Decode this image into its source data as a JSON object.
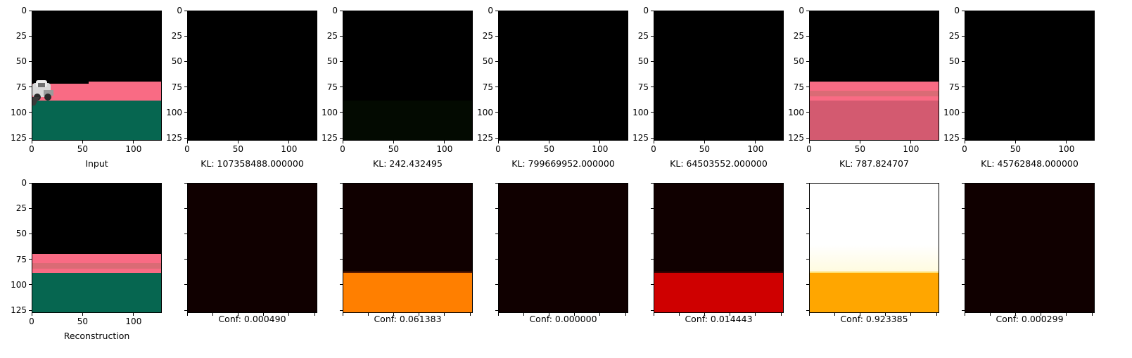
{
  "chart_data": {
    "type": "image-grid",
    "axis_range": [
      0,
      127
    ],
    "x_ticks": [
      "0",
      "50",
      "100"
    ],
    "y_ticks": [
      "0",
      "25",
      "50",
      "75",
      "100",
      "125"
    ],
    "top_row": [
      {
        "caption": "Input",
        "image": "input-scene"
      },
      {
        "caption": "KL: 107358488.000000",
        "image": "black"
      },
      {
        "caption": "KL: 242.432495",
        "image": "black-faint-green"
      },
      {
        "caption": "KL: 799669952.000000",
        "image": "black"
      },
      {
        "caption": "KL: 64503552.000000",
        "image": "black"
      },
      {
        "caption": "KL: 787.824707",
        "image": "pink-reconstruction"
      },
      {
        "caption": "KL: 45762848.000000",
        "image": "black"
      }
    ],
    "bottom_row": [
      {
        "caption": "Reconstruction",
        "image": "reconstruction-scene"
      },
      {
        "caption": "Conf: 0.000490",
        "image": "heat-dark"
      },
      {
        "caption": "Conf: 0.061383",
        "image": "heat-orange"
      },
      {
        "caption": "Conf: 0.000000",
        "image": "heat-dark"
      },
      {
        "caption": "Conf: 0.014443",
        "image": "heat-red"
      },
      {
        "caption": "Conf: 0.923385",
        "image": "heat-white-yellow"
      },
      {
        "caption": "Conf: 0.000299",
        "image": "heat-dark-line"
      }
    ],
    "colors": {
      "black": "#000000",
      "road_green": "#066650",
      "band_pink": "#f96b84",
      "pink_lower": "#d35a70",
      "heat_dark": "#100000",
      "heat_orange": "#ff7f00",
      "heat_red": "#cf0000",
      "heat_yellow": "#ffa600",
      "heat_white": "#ffffff"
    }
  }
}
